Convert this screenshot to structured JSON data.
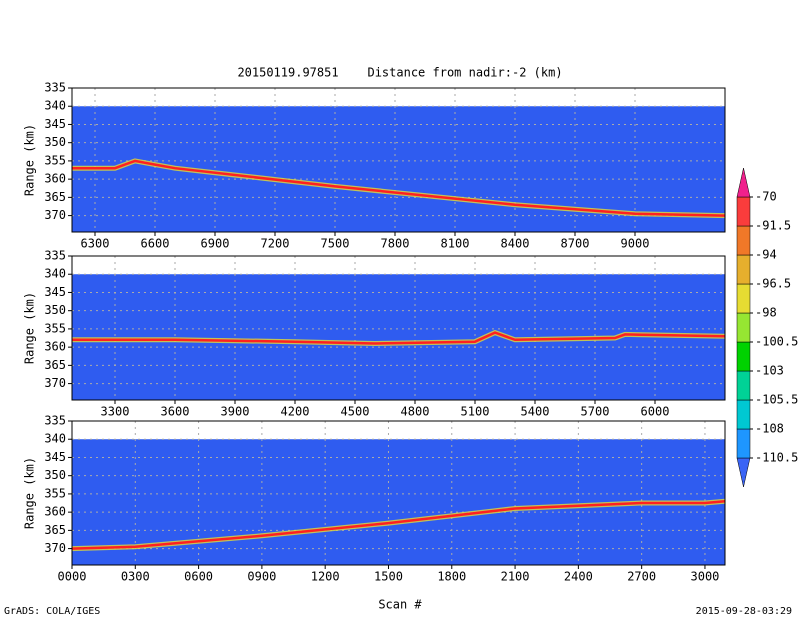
{
  "title": "20150119.97851    Distance from nadir:-2 (km)",
  "xlabel": "Scan #",
  "footer_left": "GrADS: COLA/IGES",
  "footer_right": "2015-09-28-03:29",
  "colorbar": {
    "levels": [
      -110.5,
      -108,
      -105.5,
      -103,
      -100.5,
      -98,
      -96.5,
      -94,
      -91.5,
      -70
    ],
    "colors": [
      "#3a64f5",
      "#1e96ff",
      "#00c8d2",
      "#00d296",
      "#00d200",
      "#96e632",
      "#e6dc32",
      "#e6af2d",
      "#f07828",
      "#fa3c3c",
      "#f0208c"
    ]
  },
  "chart_data": [
    {
      "type": "line",
      "ylabel": "Range (km)",
      "color": "#ff2020",
      "fill_color": "#2f5cf0",
      "fill_ylim": [
        374.5,
        340
      ],
      "x": [
        6185,
        6400,
        6500,
        6600,
        6700,
        7500,
        8400,
        9000,
        9450
      ],
      "values": [
        357,
        357,
        355,
        356,
        357,
        362,
        367,
        369.5,
        370
      ],
      "xlim": [
        6185,
        9450
      ],
      "ylim": [
        374.5,
        335
      ],
      "xticks": [
        6300,
        6600,
        6900,
        7200,
        7500,
        7800,
        8100,
        8400,
        8700,
        9000
      ],
      "yticks": [
        335,
        340,
        345,
        350,
        355,
        360,
        365,
        370
      ],
      "grid": true
    },
    {
      "type": "line",
      "ylabel": "Range (km)",
      "color": "#ff2020",
      "fill_color": "#2f5cf0",
      "fill_ylim": [
        374.5,
        340
      ],
      "x": [
        3085,
        3600,
        4200,
        4600,
        5100,
        5200,
        5300,
        5800,
        5850,
        6350
      ],
      "values": [
        358,
        358,
        358.5,
        359,
        358.5,
        356,
        358,
        357.5,
        356.5,
        357
      ],
      "xlim": [
        3085,
        6350
      ],
      "ylim": [
        374.5,
        335
      ],
      "xticks": [
        3300,
        3600,
        3900,
        4200,
        4500,
        4800,
        5100,
        5400,
        5700,
        6000
      ],
      "yticks": [
        335,
        340,
        345,
        350,
        355,
        360,
        365,
        370
      ],
      "grid": true
    },
    {
      "type": "line",
      "ylabel": "Range (km)",
      "color": "#ff2020",
      "fill_color": "#2f5cf0",
      "fill_ylim": [
        374.5,
        340
      ],
      "x": [
        0,
        300,
        900,
        1500,
        2100,
        2700,
        3000,
        3095
      ],
      "values": [
        370,
        369.5,
        366.5,
        363,
        359,
        357.5,
        357.5,
        357
      ],
      "xlim": [
        0,
        3095
      ],
      "ylim": [
        374.5,
        335
      ],
      "xticks": [
        {
          "value": 0,
          "label": "0000"
        },
        {
          "value": 300,
          "label": "0300"
        },
        {
          "value": 600,
          "label": "0600"
        },
        {
          "value": 900,
          "label": "0900"
        },
        1200,
        1500,
        1800,
        2100,
        2400,
        2700,
        3000
      ],
      "yticks": [
        335,
        340,
        345,
        350,
        355,
        360,
        365,
        370
      ],
      "grid": true
    }
  ]
}
